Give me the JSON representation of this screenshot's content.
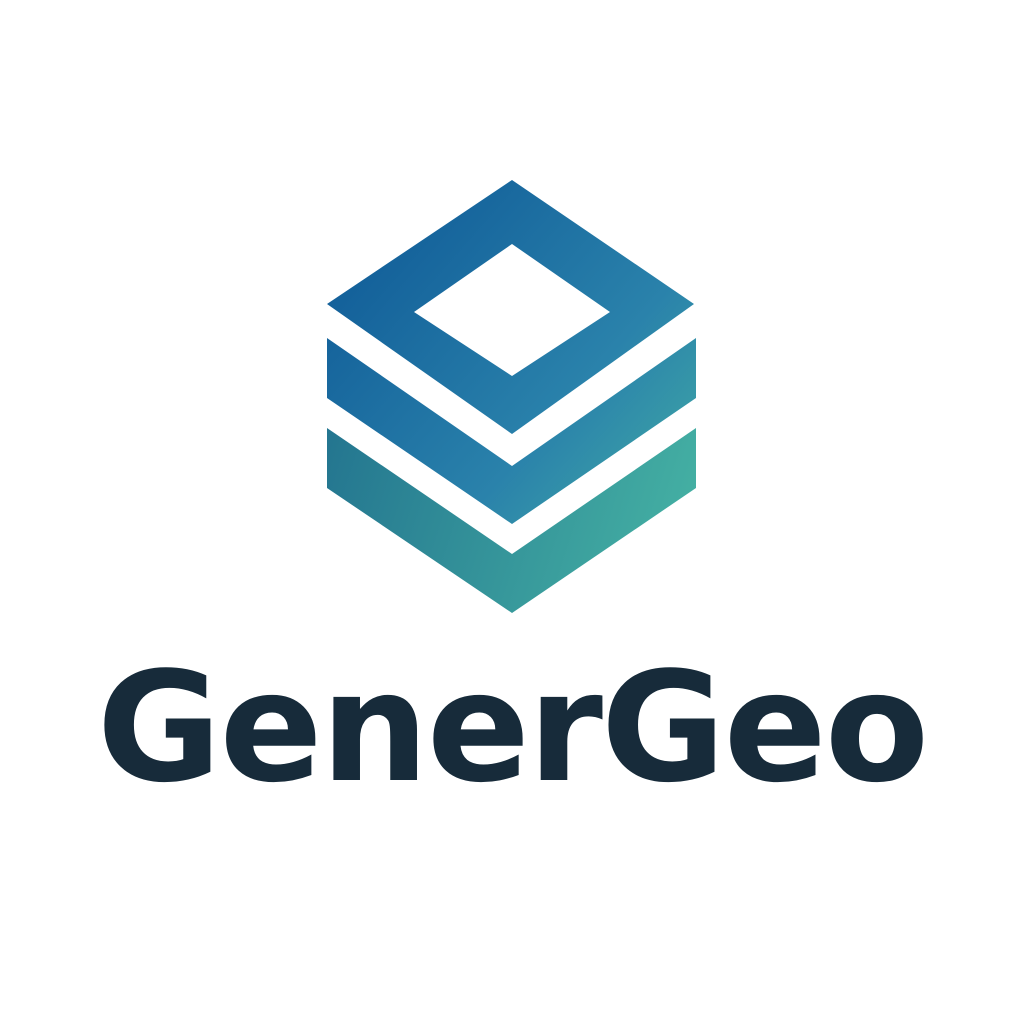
{
  "brand": {
    "name": "GenerGeo",
    "text_color": "#172b3a",
    "logo_icon": "stacked-layers-icon",
    "gradient": {
      "top_color": "#13609a",
      "middle_color": "#2a82ab",
      "bottom_color": "#46b3a4"
    }
  },
  "background_color": "#ffffff"
}
